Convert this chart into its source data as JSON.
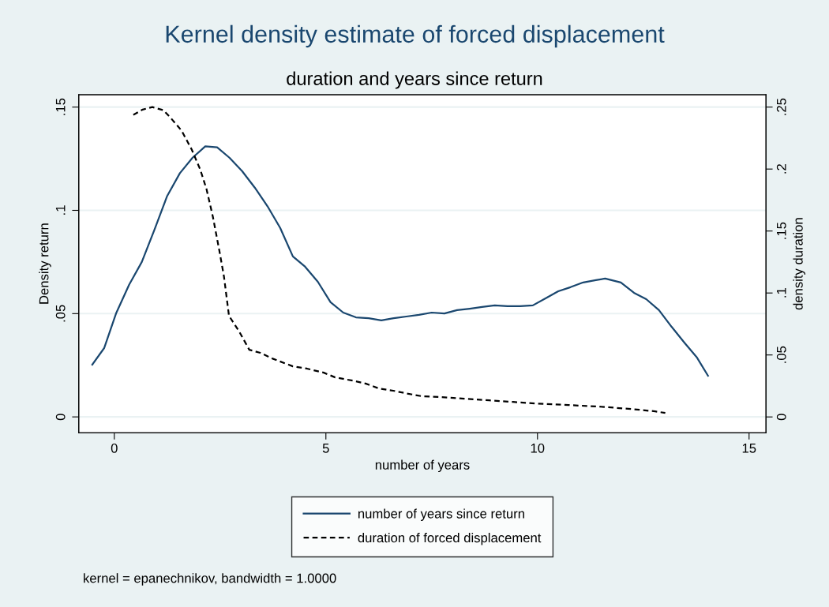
{
  "chart_data": {
    "type": "line",
    "title": "Kernel density estimate of forced displacement",
    "subtitle": "duration and years since return",
    "xlabel": "number of years",
    "ylabel": "Density return",
    "y2label": "density duration",
    "annotations": [
      "kernel = epanechnikov, bandwidth = 1.0000"
    ],
    "xlim": [
      -0.84,
      15.4
    ],
    "xticks": [
      0,
      5,
      10,
      15
    ],
    "ylim": [
      -0.0077,
      0.156
    ],
    "yticks": [
      0,
      {
        "value": 0.05,
        "label": ".05"
      },
      {
        "value": 0.1,
        "label": ".1"
      },
      {
        "value": 0.15,
        "label": ".15"
      }
    ],
    "y2lim": [
      -0.0128,
      0.26
    ],
    "y2ticks": [
      0,
      {
        "value": 0.05,
        "label": ".05"
      },
      {
        "value": 0.1,
        "label": ".1"
      },
      {
        "value": 0.15,
        "label": ".15"
      },
      {
        "value": 0.2,
        "label": ".2"
      },
      {
        "value": 0.25,
        "label": ".25"
      }
    ],
    "grid": "y",
    "legend": "bottom",
    "marker": "none",
    "series": [
      {
        "name": "number of years since return",
        "color": "#1a476f",
        "line_style": "solid",
        "axis": "y",
        "x": [
          -0.52,
          -0.24,
          0.04,
          0.35,
          0.65,
          0.95,
          1.25,
          1.55,
          1.85,
          2.15,
          2.43,
          2.72,
          3.02,
          3.32,
          3.62,
          3.92,
          4.22,
          4.51,
          4.81,
          5.11,
          5.41,
          5.71,
          6.01,
          6.31,
          6.6,
          6.9,
          7.2,
          7.5,
          7.8,
          8.1,
          8.4,
          8.69,
          8.99,
          9.29,
          9.59,
          9.89,
          10.19,
          10.49,
          10.78,
          11.08,
          11.38,
          11.6,
          11.97,
          12.28,
          12.57,
          12.87,
          13.17,
          13.47,
          13.77,
          14.03
        ],
        "values": [
          0.0253,
          0.0333,
          0.05,
          0.064,
          0.075,
          0.0907,
          0.107,
          0.118,
          0.1255,
          0.131,
          0.1305,
          0.1255,
          0.119,
          0.111,
          0.102,
          0.0915,
          0.0777,
          0.0727,
          0.0654,
          0.0555,
          0.0505,
          0.0482,
          0.0478,
          0.0467,
          0.0478,
          0.0486,
          0.0494,
          0.0505,
          0.0501,
          0.0517,
          0.0524,
          0.0532,
          0.054,
          0.0536,
          0.0536,
          0.054,
          0.0574,
          0.0608,
          0.0628,
          0.0651,
          0.0662,
          0.067,
          0.0651,
          0.0601,
          0.057,
          0.0517,
          0.0436,
          0.036,
          0.0287,
          0.0199
        ]
      },
      {
        "name": "duration of forced displacement",
        "color": "#000000",
        "line_style": "dashed",
        "axis": "y2",
        "x": [
          0.45,
          0.67,
          0.9,
          1.16,
          1.34,
          1.59,
          1.83,
          2.03,
          2.18,
          2.33,
          2.48,
          2.59,
          2.71,
          2.95,
          3.19,
          3.45,
          3.73,
          4.22,
          4.55,
          4.95,
          5.22,
          5.63,
          5.95,
          6.25,
          6.62,
          6.9,
          7.28,
          7.74,
          8.27,
          8.86,
          9.42,
          9.98,
          10.73,
          11.47,
          12.22,
          12.78,
          13.02
        ],
        "values": [
          0.2437,
          0.248,
          0.25,
          0.2475,
          0.241,
          0.231,
          0.2157,
          0.1997,
          0.1837,
          0.1614,
          0.1346,
          0.1136,
          0.0816,
          0.069,
          0.0542,
          0.0517,
          0.0472,
          0.0408,
          0.039,
          0.0357,
          0.0319,
          0.0293,
          0.0268,
          0.023,
          0.021,
          0.019,
          0.0166,
          0.016,
          0.0147,
          0.0134,
          0.0121,
          0.0108,
          0.0096,
          0.0083,
          0.0064,
          0.0045,
          0.0032
        ]
      }
    ]
  }
}
